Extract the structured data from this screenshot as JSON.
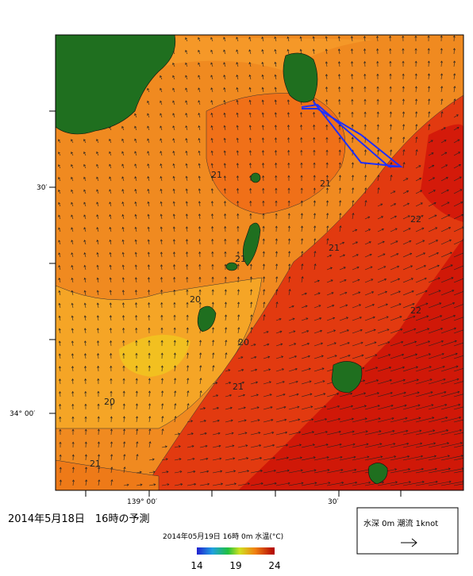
{
  "map": {
    "lat_labels": [
      "30′",
      "34° 00′"
    ],
    "lon_labels": [
      "139° 00′",
      "30′"
    ],
    "contour_labels": [
      "21",
      "21",
      "21",
      "21",
      "20",
      "20",
      "21",
      "20",
      "21",
      "22",
      "22"
    ]
  },
  "caption": "2014年5月18日　16時の予測",
  "colorbar": {
    "title": "2014年05月19日 16時 0m 水温(°C)",
    "range": [
      14,
      24
    ],
    "ticks": [
      14,
      19,
      24
    ]
  },
  "legend": {
    "text": "水深 0m 潮流 1knot"
  }
}
